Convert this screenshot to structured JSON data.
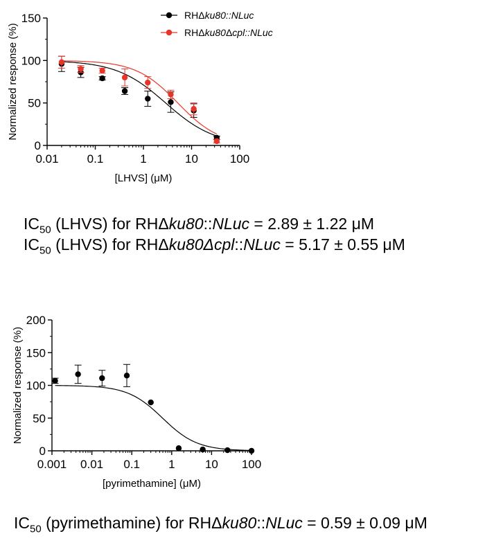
{
  "chart_data": [
    {
      "type": "scatter",
      "xlabel": "[LHVS] (μM)",
      "ylabel": "Normalized response (%)",
      "xscale": "log",
      "xlim": [
        0.01,
        100
      ],
      "ylim": [
        0,
        150
      ],
      "xticks": [
        "0.01",
        "0.1",
        "1",
        "10",
        "100"
      ],
      "yticks": [
        "0",
        "50",
        "100",
        "150"
      ],
      "grid": false,
      "legend": "top-center",
      "series": [
        {
          "name": "RHΔku80::NLuc",
          "legend_parts": [
            "RHΔ",
            "ku80::NLuc",
            ""
          ],
          "color": "#000000",
          "fit": {
            "top": 100,
            "bottom": 0,
            "ic50": 2.89,
            "hill": 0.85
          },
          "points": [
            {
              "x": 0.02,
              "y": 96,
              "err": 9
            },
            {
              "x": 0.05,
              "y": 86,
              "err": 6
            },
            {
              "x": 0.14,
              "y": 79,
              "err": 2
            },
            {
              "x": 0.41,
              "y": 64,
              "err": 4
            },
            {
              "x": 1.23,
              "y": 55,
              "err": 9
            },
            {
              "x": 3.7,
              "y": 51,
              "err": 12
            },
            {
              "x": 11.1,
              "y": 41,
              "err": 8
            },
            {
              "x": 33.3,
              "y": 9,
              "err": 2
            }
          ]
        },
        {
          "name": "RHΔku80Δcpl::NLuc",
          "legend_parts": [
            "RHΔ",
            "ku80",
            "Δ",
            "cpl::NLuc"
          ],
          "color": "#e8352a",
          "fit": {
            "top": 100,
            "bottom": 0,
            "ic50": 5.17,
            "hill": 1.0
          },
          "points": [
            {
              "x": 0.02,
              "y": 98,
              "err": 7
            },
            {
              "x": 0.05,
              "y": 90,
              "err": 4
            },
            {
              "x": 0.14,
              "y": 88,
              "err": 3
            },
            {
              "x": 0.41,
              "y": 80,
              "err": 10
            },
            {
              "x": 1.23,
              "y": 74,
              "err": 7
            },
            {
              "x": 3.7,
              "y": 60,
              "err": 5
            },
            {
              "x": 11.1,
              "y": 43,
              "err": 7
            },
            {
              "x": 33.3,
              "y": 5,
              "err": 2
            }
          ]
        }
      ]
    },
    {
      "type": "scatter",
      "xlabel": "[pyrimethamine] (μM)",
      "ylabel": "Normalized response (%)",
      "xscale": "log",
      "xlim": [
        0.001,
        100
      ],
      "ylim": [
        0,
        200
      ],
      "xticks": [
        "0.001",
        "0.01",
        "0.1",
        "1",
        "10",
        "100"
      ],
      "yticks": [
        "0",
        "50",
        "100",
        "150",
        "200"
      ],
      "grid": false,
      "series": [
        {
          "color": "#000000",
          "fit": {
            "top": 100,
            "bottom": 0,
            "ic50": 0.59,
            "hill": 1.0
          },
          "points": [
            {
              "x": 0.0012,
              "y": 107,
              "err": 4
            },
            {
              "x": 0.0045,
              "y": 117,
              "err": 14
            },
            {
              "x": 0.018,
              "y": 111,
              "err": 12
            },
            {
              "x": 0.075,
              "y": 115,
              "err": 17
            },
            {
              "x": 0.3,
              "y": 74,
              "err": 0
            },
            {
              "x": 1.5,
              "y": 4,
              "err": 0
            },
            {
              "x": 6,
              "y": 2,
              "err": 0
            },
            {
              "x": 25,
              "y": 1,
              "err": 0
            },
            {
              "x": 100,
              "y": 0,
              "err": 0
            }
          ]
        }
      ]
    }
  ],
  "ic50_lines": [
    {
      "parts": [
        "IC",
        "50",
        " (LHVS) for RHΔ",
        "ku80",
        "::",
        "NLuc",
        " = 2.89 ± 1.22 μM"
      ]
    },
    {
      "parts": [
        "IC",
        "50",
        " (LHVS) for RHΔ",
        "ku80Δcpl",
        "::",
        "NLuc",
        " = 5.17 ± 0.55 μM"
      ]
    },
    {
      "parts": [
        "IC",
        "50",
        " (pyrimethamine) for RHΔ",
        "ku80",
        "::",
        "NLuc",
        " = 0.59 ± 0.09 μM"
      ]
    }
  ]
}
